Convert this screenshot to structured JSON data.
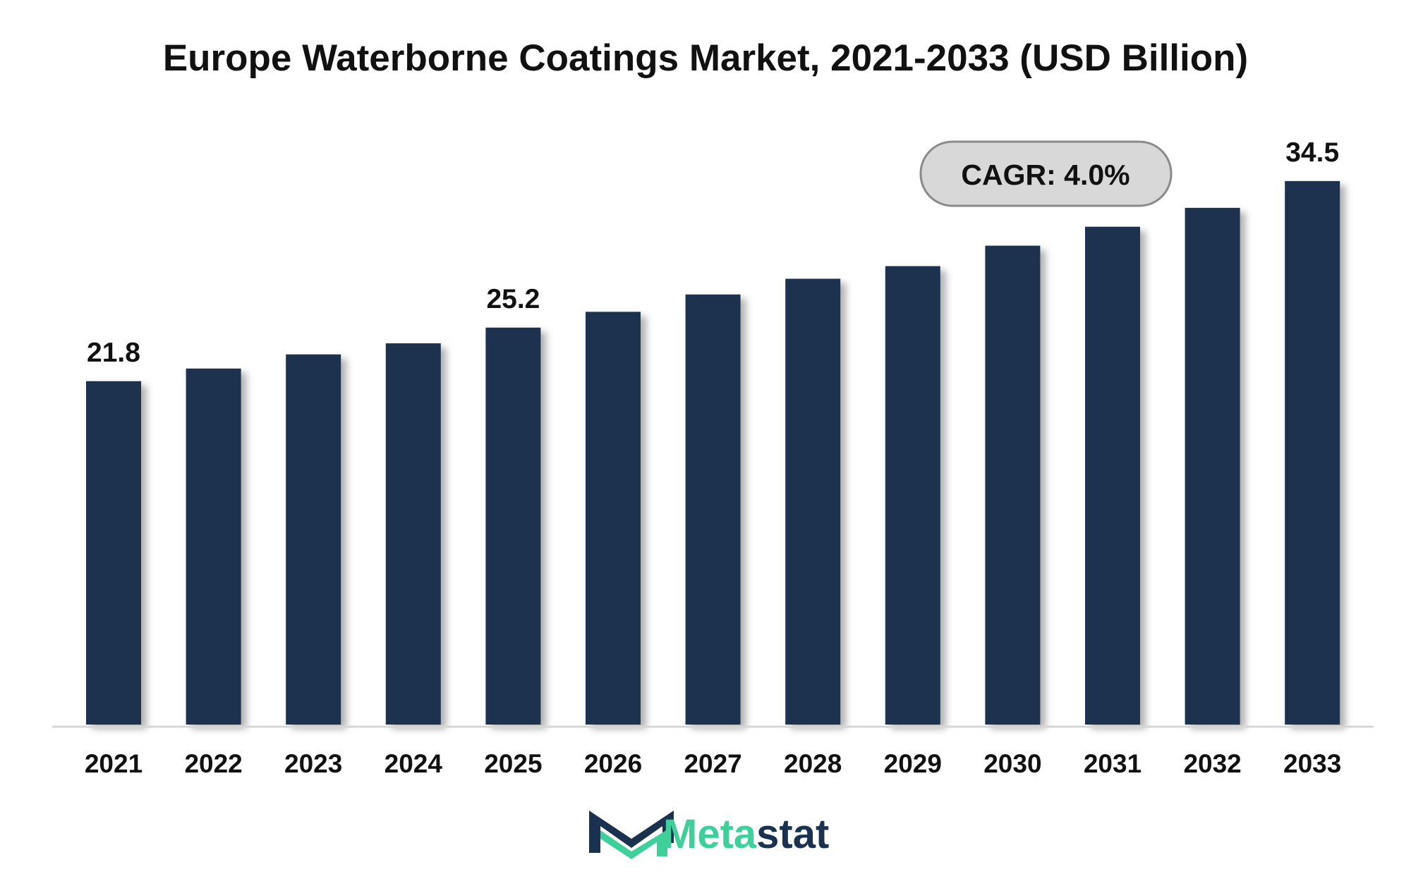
{
  "chart_data": {
    "type": "bar",
    "title": "Europe Waterborne Coatings Market, 2021-2033 (USD Billion)",
    "xlabel": "",
    "ylabel": "",
    "categories": [
      "2021",
      "2022",
      "2023",
      "2024",
      "2025",
      "2026",
      "2027",
      "2028",
      "2029",
      "2030",
      "2031",
      "2032",
      "2033"
    ],
    "values": [
      21.8,
      22.6,
      23.5,
      24.2,
      25.2,
      26.2,
      27.3,
      28.3,
      29.1,
      30.4,
      31.6,
      32.8,
      34.5
    ],
    "value_labels": [
      {
        "index": 0,
        "text": "21.8"
      },
      {
        "index": 4,
        "text": "25.2"
      },
      {
        "index": 12,
        "text": "34.5"
      }
    ],
    "ylim": [
      0,
      40
    ],
    "grid": false,
    "legend": "none",
    "annotation": "CAGR: 4.0%",
    "bar_color": "#1a3150"
  },
  "branding": {
    "logo_part1": "Meta",
    "logo_part2": "stat",
    "accent_color": "#3ecf9a",
    "dark_color": "#1a3150"
  }
}
